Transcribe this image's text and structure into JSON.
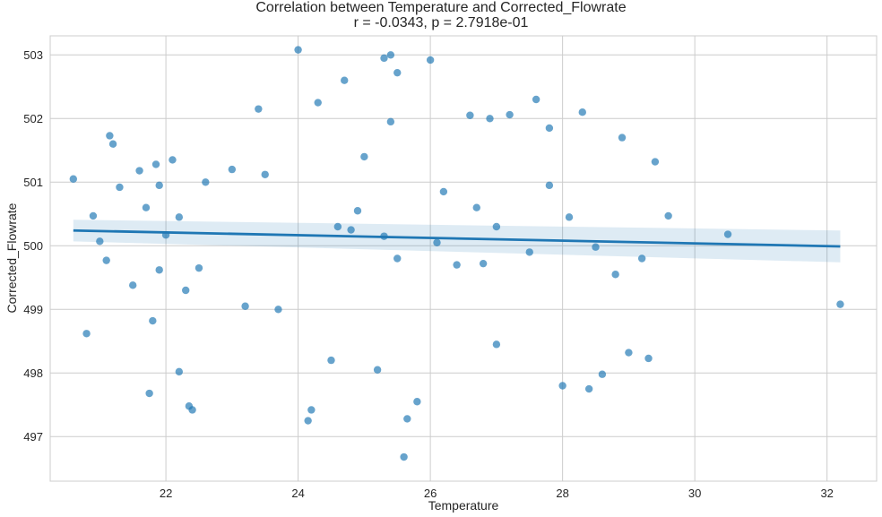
{
  "chart_data": {
    "type": "scatter",
    "title": "Correlation between Temperature and Corrected_Flowrate",
    "subtitle": "r = -0.0343, p = 2.7918e-01",
    "xlabel": "Temperature",
    "ylabel": "Corrected_Flowrate",
    "xlim": [
      20.25,
      32.75
    ],
    "ylim": [
      496.3,
      503.3
    ],
    "xticks": [
      22,
      24,
      26,
      28,
      30,
      32
    ],
    "yticks": [
      497,
      498,
      499,
      500,
      501,
      502,
      503
    ],
    "grid": true,
    "point_color": "#1f77b4",
    "regression": {
      "x": [
        20.6,
        32.2
      ],
      "y": [
        500.24,
        499.99
      ],
      "ci_lower": [
        500.07,
        499.74
      ],
      "ci_upper": [
        500.41,
        500.24
      ],
      "color": "#1f77b4"
    },
    "points": {
      "x": [
        20.6,
        20.8,
        20.9,
        21.0,
        21.1,
        21.15,
        21.2,
        21.3,
        21.5,
        21.6,
        21.7,
        21.8,
        21.85,
        21.9,
        22.0,
        22.1,
        22.2,
        22.3,
        22.35,
        22.4,
        24.0,
        24.15,
        24.3,
        25.3,
        25.4,
        25.5,
        25.6,
        25.65,
        26.0,
        25.4,
        26.6,
        27.8,
        28.3,
        28.6,
        29.0,
        29.4,
        29.6,
        30.5,
        32.2,
        27.6,
        27.2,
        26.9,
        28.0,
        28.4,
        28.9,
        27.0,
        29.3,
        21.75,
        21.9,
        22.6,
        23.4,
        23.7,
        24.5,
        24.7,
        25.0,
        25.2,
        26.2,
        26.7,
        27.5,
        28.1,
        28.8,
        22.5,
        23.0,
        24.8,
        25.5,
        26.4,
        27.0,
        28.5,
        29.2,
        23.5,
        24.9,
        26.8,
        27.8,
        22.2,
        24.2,
        25.8,
        23.2,
        24.6,
        25.3,
        26.1
      ],
      "y": [
        501.05,
        498.62,
        500.47,
        500.07,
        499.77,
        501.73,
        501.6,
        500.92,
        499.38,
        501.18,
        500.6,
        498.82,
        501.28,
        500.95,
        500.17,
        501.35,
        500.45,
        499.3,
        497.48,
        497.42,
        503.08,
        497.25,
        502.25,
        502.95,
        503.0,
        502.72,
        496.68,
        497.28,
        502.92,
        501.95,
        502.05,
        501.85,
        502.1,
        497.98,
        498.32,
        501.32,
        500.47,
        500.18,
        499.08,
        502.3,
        502.06,
        502.0,
        497.8,
        497.75,
        501.7,
        498.45,
        498.23,
        497.68,
        499.62,
        501.0,
        502.15,
        499.0,
        498.2,
        502.6,
        501.4,
        498.05,
        500.85,
        500.6,
        499.9,
        500.45,
        499.55,
        499.65,
        501.2,
        500.25,
        499.8,
        499.7,
        500.3,
        499.98,
        499.8,
        501.12,
        500.55,
        499.72,
        500.95,
        498.02,
        497.42,
        497.55,
        499.05,
        500.3,
        500.15,
        500.05
      ]
    }
  }
}
